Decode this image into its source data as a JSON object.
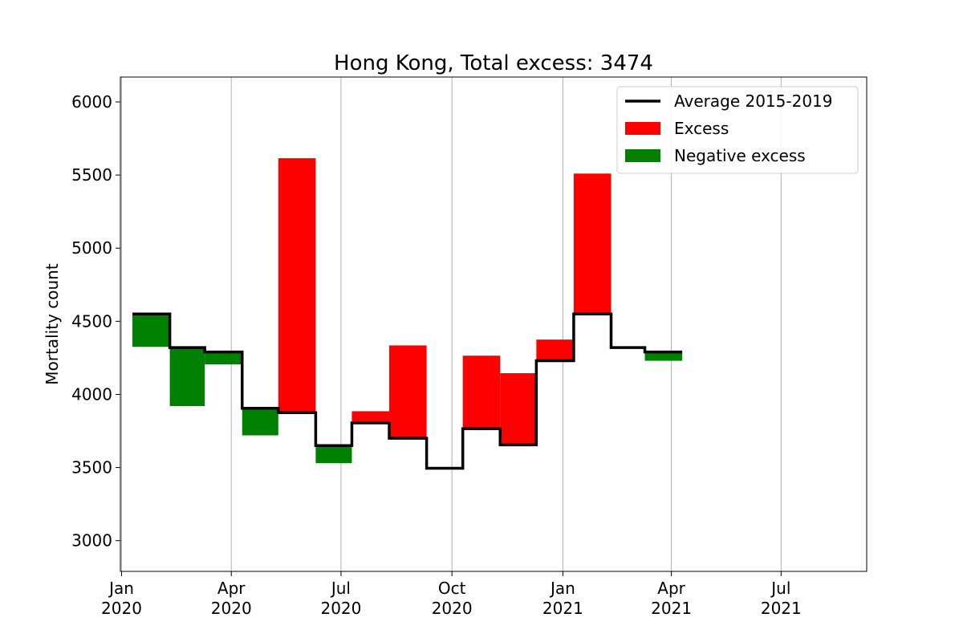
{
  "chart_data": {
    "type": "bar",
    "title": "Hong Kong, Total excess: 3474",
    "xlabel": "",
    "ylabel": "Mortality count",
    "ylim": [
      2790,
      6170
    ],
    "xlim": [
      "2019-12-31",
      "2021-09-10"
    ],
    "grid": {
      "x": true,
      "y": false
    },
    "legend": {
      "placement": "top-right",
      "entries": [
        {
          "label": "Average 2015-2019",
          "kind": "line",
          "color": "#000000"
        },
        {
          "label": "Excess",
          "kind": "patch",
          "color": "#ff0000"
        },
        {
          "label": "Negative excess",
          "kind": "patch",
          "color": "#008000"
        }
      ]
    },
    "colors": {
      "average": "#000000",
      "excess": "#ff0000",
      "negative_excess": "#008000"
    },
    "y_ticks": [
      3000,
      3500,
      4000,
      4500,
      5000,
      5500,
      6000
    ],
    "x_ticks": [
      {
        "date": "2020-01-01",
        "line1": "Jan",
        "line2": "2020"
      },
      {
        "date": "2020-04-01",
        "line1": "Apr",
        "line2": "2020"
      },
      {
        "date": "2020-07-01",
        "line1": "Jul",
        "line2": "2020"
      },
      {
        "date": "2020-10-01",
        "line1": "Oct",
        "line2": "2020"
      },
      {
        "date": "2021-01-01",
        "line1": "Jan",
        "line2": "2021"
      },
      {
        "date": "2021-04-01",
        "line1": "Apr",
        "line2": "2021"
      },
      {
        "date": "2021-07-01",
        "line1": "Jul",
        "line2": "2021"
      }
    ],
    "periods": [
      {
        "start": "2020-01-10",
        "end": "2020-02-10",
        "average": 4550,
        "actual": 4325
      },
      {
        "start": "2020-02-10",
        "end": "2020-03-10",
        "average": 4320,
        "actual": 3920
      },
      {
        "start": "2020-03-10",
        "end": "2020-04-10",
        "average": 4290,
        "actual": 4205
      },
      {
        "start": "2020-04-10",
        "end": "2020-05-10",
        "average": 3905,
        "actual": 3720
      },
      {
        "start": "2020-05-10",
        "end": "2020-06-10",
        "average": 3875,
        "actual": 5615
      },
      {
        "start": "2020-06-10",
        "end": "2020-07-10",
        "average": 3650,
        "actual": 3530
      },
      {
        "start": "2020-07-10",
        "end": "2020-08-10",
        "average": 3805,
        "actual": 3885
      },
      {
        "start": "2020-08-10",
        "end": "2020-09-10",
        "average": 3700,
        "actual": 4335
      },
      {
        "start": "2020-09-10",
        "end": "2020-10-10",
        "average": 3495,
        "actual": 3495
      },
      {
        "start": "2020-10-10",
        "end": "2020-11-10",
        "average": 3765,
        "actual": 4265
      },
      {
        "start": "2020-11-10",
        "end": "2020-12-10",
        "average": 3655,
        "actual": 4145
      },
      {
        "start": "2020-12-10",
        "end": "2021-01-10",
        "average": 4230,
        "actual": 4375
      },
      {
        "start": "2021-01-10",
        "end": "2021-02-10",
        "average": 4550,
        "actual": 5510
      },
      {
        "start": "2021-02-10",
        "end": "2021-03-10",
        "average": 4320,
        "actual": 4320
      },
      {
        "start": "2021-03-10",
        "end": "2021-04-10",
        "average": 4290,
        "actual": 4230
      }
    ]
  }
}
